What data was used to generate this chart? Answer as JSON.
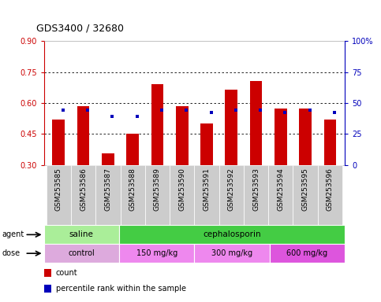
{
  "title": "GDS3400 / 32680",
  "samples": [
    "GSM253585",
    "GSM253586",
    "GSM253587",
    "GSM253588",
    "GSM253589",
    "GSM253590",
    "GSM253591",
    "GSM253592",
    "GSM253593",
    "GSM253594",
    "GSM253595",
    "GSM253596"
  ],
  "red_values": [
    0.52,
    0.585,
    0.355,
    0.45,
    0.69,
    0.585,
    0.5,
    0.665,
    0.705,
    0.575,
    0.575,
    0.52
  ],
  "blue_values": [
    0.565,
    0.565,
    0.535,
    0.535,
    0.565,
    0.565,
    0.555,
    0.565,
    0.565,
    0.555,
    0.565,
    0.555
  ],
  "ylim_left": [
    0.3,
    0.9
  ],
  "ylim_right": [
    0,
    100
  ],
  "yticks_left": [
    0.3,
    0.45,
    0.6,
    0.75,
    0.9
  ],
  "yticks_right": [
    0,
    25,
    50,
    75,
    100
  ],
  "ytick_labels_right": [
    "0",
    "25",
    "50",
    "75",
    "100%"
  ],
  "bar_color_red": "#cc0000",
  "bar_color_blue": "#0000bb",
  "bar_bottom": 0.3,
  "saline_color": "#aaee99",
  "ceph_color": "#44cc44",
  "control_color": "#ddaadd",
  "dose150_color": "#ee88ee",
  "dose300_color": "#ee88ee",
  "dose600_color": "#dd55dd",
  "tick_bg_color": "#cccccc",
  "background_color": "#ffffff"
}
